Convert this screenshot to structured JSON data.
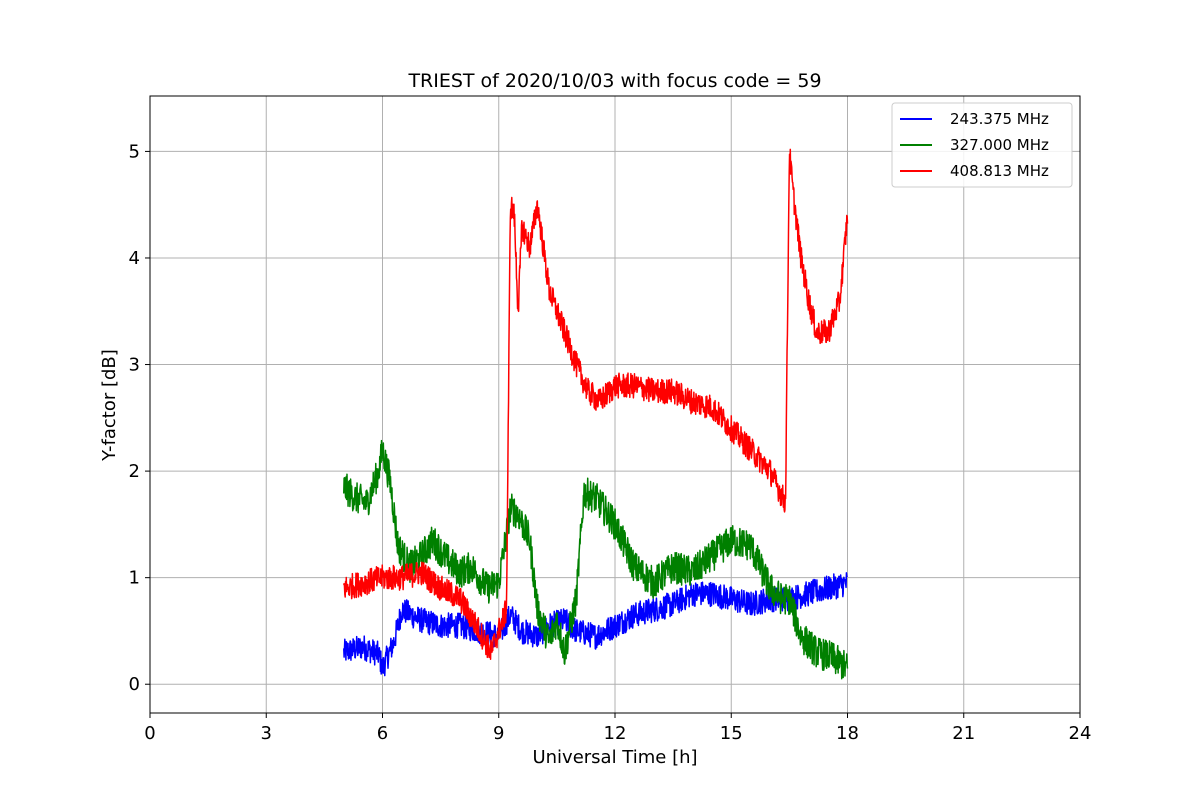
{
  "chart_data": {
    "type": "line",
    "title": "TRIEST of 2020/10/03 with focus code = 59",
    "xlabel": "Universal Time [h]",
    "ylabel": "Y-factor [dB]",
    "xlim": [
      0,
      24
    ],
    "ylim": [
      -0.27,
      5.52
    ],
    "xticks": [
      0,
      3,
      6,
      9,
      12,
      15,
      18,
      21,
      24
    ],
    "yticks": [
      0,
      1,
      2,
      3,
      4,
      5
    ],
    "grid": true,
    "legend_position": "upper right",
    "series": [
      {
        "name": "243.375 MHz",
        "color": "#0000ff",
        "x": [
          5.0,
          5.5,
          5.9,
          6.0,
          6.3,
          6.5,
          7.0,
          7.5,
          8.0,
          8.5,
          9.0,
          9.3,
          9.6,
          10.0,
          10.3,
          10.7,
          11.0,
          11.5,
          12.0,
          12.5,
          13.0,
          13.5,
          14.0,
          14.5,
          15.0,
          15.5,
          16.0,
          16.5,
          17.0,
          17.5,
          18.0
        ],
        "y": [
          0.3,
          0.35,
          0.28,
          0.15,
          0.4,
          0.7,
          0.6,
          0.55,
          0.55,
          0.5,
          0.45,
          0.65,
          0.5,
          0.45,
          0.55,
          0.6,
          0.5,
          0.45,
          0.55,
          0.65,
          0.7,
          0.75,
          0.85,
          0.85,
          0.8,
          0.75,
          0.8,
          0.8,
          0.85,
          0.9,
          0.95
        ],
        "noise": 0.12
      },
      {
        "name": "327.000 MHz",
        "color": "#008000",
        "x": [
          5.0,
          5.3,
          5.6,
          5.9,
          6.0,
          6.2,
          6.4,
          6.7,
          7.0,
          7.3,
          7.6,
          8.0,
          8.3,
          8.7,
          9.0,
          9.3,
          9.5,
          9.8,
          10.0,
          10.3,
          10.5,
          10.7,
          11.0,
          11.2,
          11.5,
          12.0,
          12.5,
          13.0,
          13.5,
          14.0,
          14.5,
          15.0,
          15.5,
          16.0,
          16.3,
          16.5,
          16.8,
          17.2,
          17.6,
          18.0
        ],
        "y": [
          1.85,
          1.75,
          1.7,
          2.0,
          2.2,
          1.9,
          1.3,
          1.1,
          1.2,
          1.35,
          1.2,
          1.05,
          1.1,
          0.9,
          0.95,
          1.65,
          1.6,
          1.35,
          0.7,
          0.4,
          0.6,
          0.3,
          0.8,
          1.8,
          1.75,
          1.5,
          1.1,
          0.95,
          1.1,
          1.05,
          1.2,
          1.35,
          1.3,
          0.9,
          0.8,
          0.8,
          0.45,
          0.3,
          0.25,
          0.15
        ],
        "noise": 0.15
      },
      {
        "name": "408.813 MHz",
        "color": "#ff0000",
        "x": [
          5.0,
          5.5,
          6.0,
          6.5,
          7.0,
          7.5,
          8.0,
          8.5,
          8.8,
          9.0,
          9.2,
          9.3,
          9.4,
          9.5,
          9.6,
          9.8,
          10.0,
          10.3,
          10.6,
          11.0,
          11.3,
          11.6,
          12.0,
          12.5,
          13.0,
          13.5,
          14.0,
          14.5,
          15.0,
          15.5,
          16.0,
          16.2,
          16.4,
          16.5,
          16.6,
          16.8,
          17.0,
          17.2,
          17.5,
          17.8,
          18.0
        ],
        "y": [
          0.9,
          0.95,
          1.0,
          1.0,
          1.05,
          0.9,
          0.8,
          0.5,
          0.3,
          0.5,
          0.7,
          4.5,
          4.4,
          3.5,
          4.3,
          4.1,
          4.5,
          3.7,
          3.4,
          3.0,
          2.75,
          2.65,
          2.8,
          2.8,
          2.75,
          2.75,
          2.65,
          2.6,
          2.4,
          2.2,
          2.0,
          1.85,
          1.7,
          5.0,
          4.6,
          4.0,
          3.6,
          3.3,
          3.3,
          3.6,
          4.4
        ],
        "noise": 0.12
      }
    ]
  }
}
